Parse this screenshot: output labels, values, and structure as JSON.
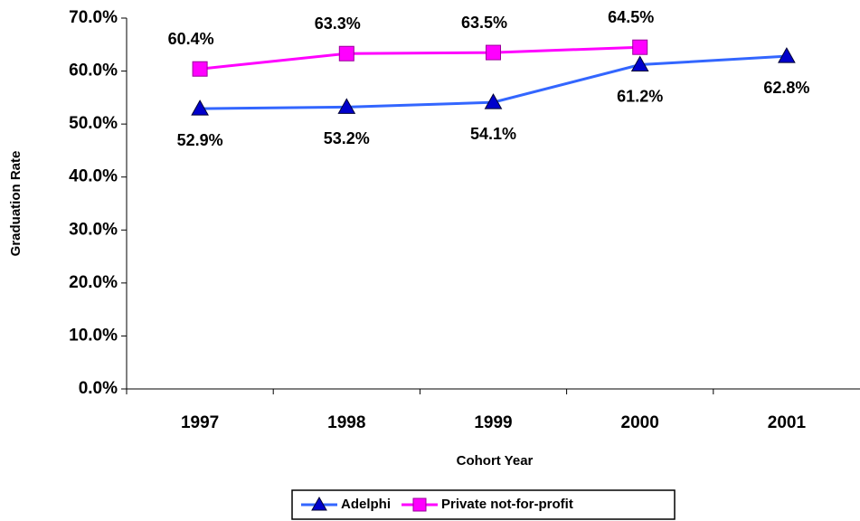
{
  "chart_data": {
    "type": "line",
    "x_label": "Cohort Year",
    "y_label": "Graduation Rate",
    "categories": [
      "1997",
      "1998",
      "1999",
      "2000",
      "2001"
    ],
    "series": [
      {
        "name": "Adelphi",
        "color": "#3366ff",
        "marker": "triangle",
        "marker_color": "#0000cc",
        "values": [
          52.9,
          53.2,
          54.1,
          61.2,
          62.8
        ],
        "value_labels": [
          "52.9%",
          "53.2%",
          "54.1%",
          "61.2%",
          "62.8%"
        ]
      },
      {
        "name": "Private not-for-profit",
        "color": "#ff00ff",
        "marker": "square",
        "marker_color": "#ff00ff",
        "values": [
          60.4,
          63.3,
          63.5,
          64.5,
          null
        ],
        "value_labels": [
          "60.4%",
          "63.3%",
          "63.5%",
          "64.5%",
          null
        ]
      }
    ],
    "ylim": [
      0,
      70
    ],
    "yticks": [
      {
        "value": 0,
        "label": "0.0%"
      },
      {
        "value": 10,
        "label": "10.0%"
      },
      {
        "value": 20,
        "label": "20.0%"
      },
      {
        "value": 30,
        "label": "30.0%"
      },
      {
        "value": 40,
        "label": "40.0%"
      },
      {
        "value": 50,
        "label": "50.0%"
      },
      {
        "value": 60,
        "label": "60.0%"
      },
      {
        "value": 70,
        "label": "70.0%"
      }
    ],
    "grid": false,
    "legend": "bottom"
  }
}
